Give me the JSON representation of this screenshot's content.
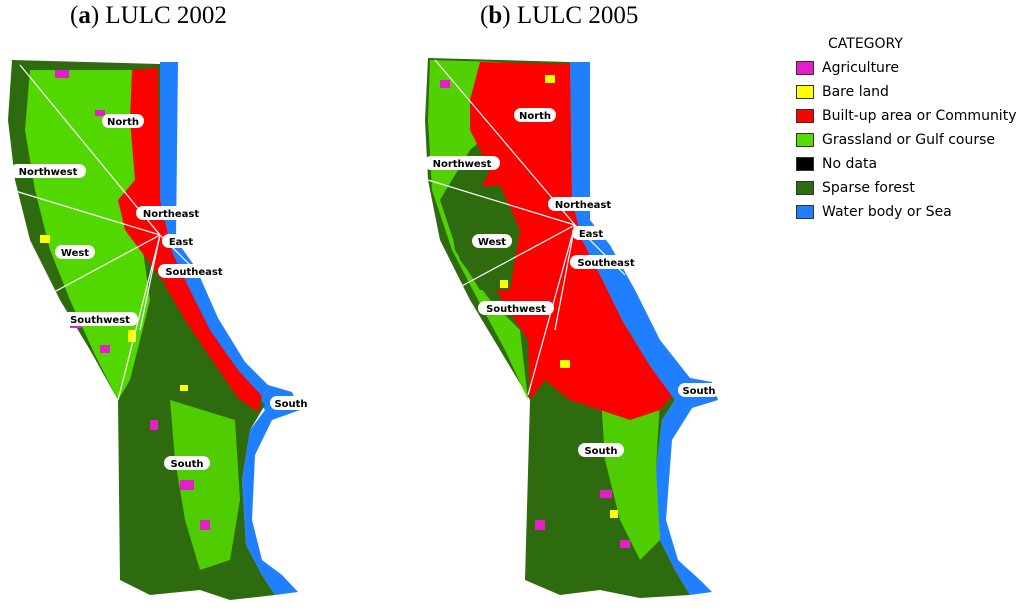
{
  "panels": [
    {
      "letter": "a",
      "title": "LULC 2002"
    },
    {
      "letter": "b",
      "title": "LULC 2005"
    }
  ],
  "regions": {
    "north": "North",
    "northwest": "Northwest",
    "northeast": "Northeast",
    "east": "East",
    "west": "West",
    "southeast": "Southeast",
    "southwest": "Southwest",
    "south_coast": "South",
    "south_inland": "South"
  },
  "legend": {
    "title": "CATEGORY",
    "items": [
      {
        "label": "Agriculture",
        "color": "#e51fc8"
      },
      {
        "label": "Bare land",
        "color": "#ffff00"
      },
      {
        "label": "Built-up area or Community",
        "color": "#ff0000"
      },
      {
        "label": "Grassland or Gulf course",
        "color": "#55dd00"
      },
      {
        "label": "No data",
        "color": "#000000"
      },
      {
        "label": "Sparse forest",
        "color": "#2e6b0e"
      },
      {
        "label": "Water body or Sea",
        "color": "#1f7fff"
      }
    ]
  },
  "colors": {
    "sea": "#1f7fff",
    "forest": "#2e6b0e",
    "grass": "#55dd00",
    "built": "#ff0000",
    "agri": "#e51fc8",
    "bare": "#ffff00"
  }
}
